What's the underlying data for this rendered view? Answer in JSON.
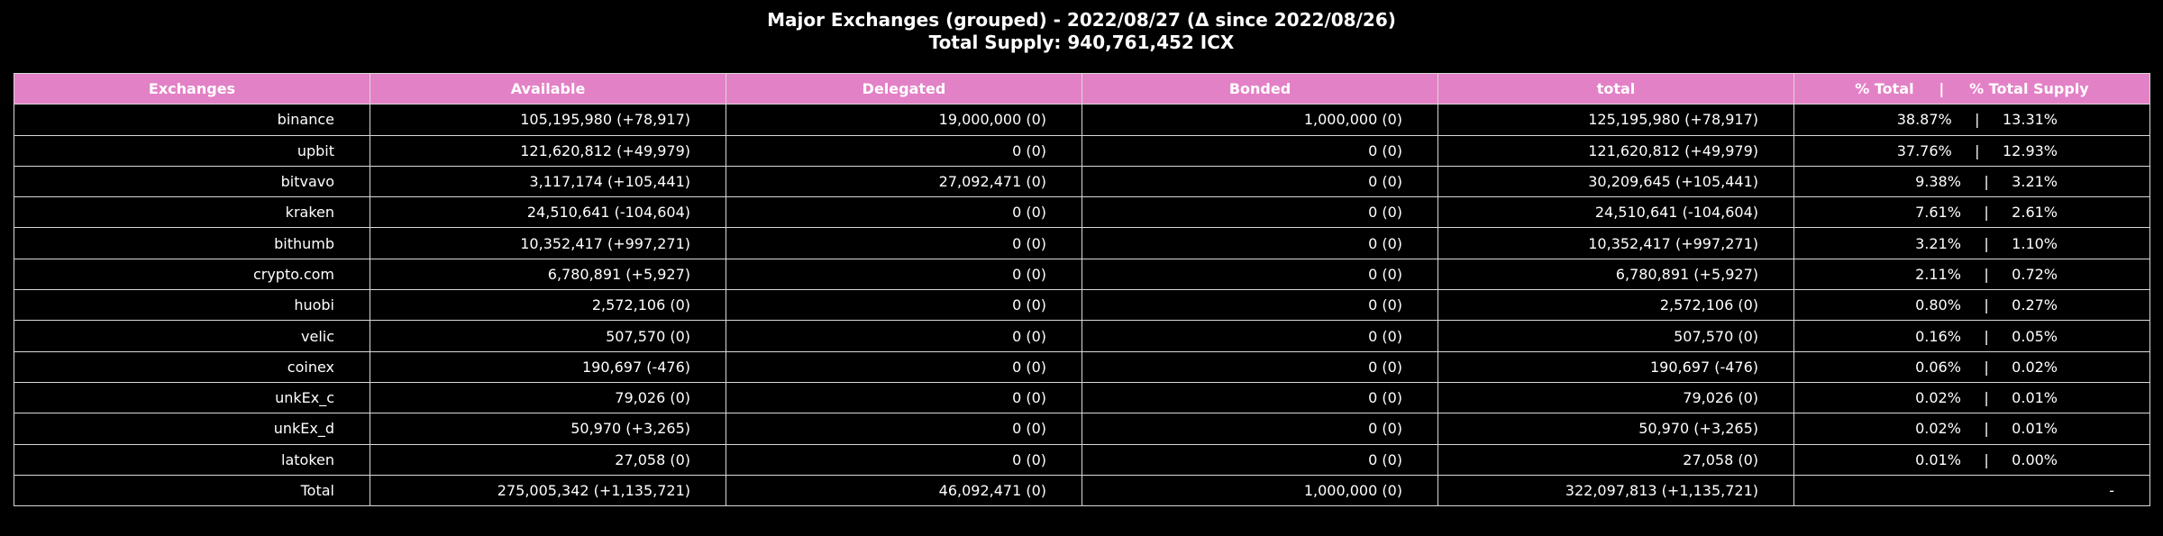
{
  "title_line1": "Major Exchanges (grouped) - 2022/08/27 (Δ since 2022/08/26)",
  "title_line2": "Total Supply: 940,761,452 ICX",
  "colors": {
    "header_bg": "#e381c6",
    "background": "#000000",
    "text": "#ffffff",
    "grid": "#d9d9d9"
  },
  "chart_data": {
    "type": "table",
    "title": "Major Exchanges (grouped) - 2022/08/27 (Δ since 2022/08/26)",
    "subtitle": "Total Supply: 940,761,452 ICX",
    "columns": [
      "Exchanges",
      "Available",
      "Delegated",
      "Bonded",
      "total",
      "% Total     |     % Total Supply"
    ],
    "rows": [
      [
        "binance",
        "105,195,980 (+78,917)",
        "19,000,000 (0)",
        "1,000,000 (0)",
        "125,195,980 (+78,917)",
        "38.87%     |     13.31%"
      ],
      [
        "upbit",
        "121,620,812 (+49,979)",
        "0 (0)",
        "0 (0)",
        "121,620,812 (+49,979)",
        "37.76%     |     12.93%"
      ],
      [
        "bitvavo",
        "3,117,174 (+105,441)",
        "27,092,471 (0)",
        "0 (0)",
        "30,209,645 (+105,441)",
        "9.38%     |     3.21%"
      ],
      [
        "kraken",
        "24,510,641 (-104,604)",
        "0 (0)",
        "0 (0)",
        "24,510,641 (-104,604)",
        "7.61%     |     2.61%"
      ],
      [
        "bithumb",
        "10,352,417 (+997,271)",
        "0 (0)",
        "0 (0)",
        "10,352,417 (+997,271)",
        "3.21%     |     1.10%"
      ],
      [
        "crypto.com",
        "6,780,891 (+5,927)",
        "0 (0)",
        "0 (0)",
        "6,780,891 (+5,927)",
        "2.11%     |     0.72%"
      ],
      [
        "huobi",
        "2,572,106 (0)",
        "0 (0)",
        "0 (0)",
        "2,572,106 (0)",
        "0.80%     |     0.27%"
      ],
      [
        "velic",
        "507,570 (0)",
        "0 (0)",
        "0 (0)",
        "507,570 (0)",
        "0.16%     |     0.05%"
      ],
      [
        "coinex",
        "190,697 (-476)",
        "0 (0)",
        "0 (0)",
        "190,697 (-476)",
        "0.06%     |     0.02%"
      ],
      [
        "unkEx_c",
        "79,026 (0)",
        "0 (0)",
        "0 (0)",
        "79,026 (0)",
        "0.02%     |     0.01%"
      ],
      [
        "unkEx_d",
        "50,970 (+3,265)",
        "0 (0)",
        "0 (0)",
        "50,970 (+3,265)",
        "0.02%     |     0.01%"
      ],
      [
        "latoken",
        "27,058 (0)",
        "0 (0)",
        "0 (0)",
        "27,058 (0)",
        "0.01%     |     0.00%"
      ],
      [
        "Total",
        "275,005,342 (+1,135,721)",
        "46,092,471 (0)",
        "1,000,000 (0)",
        "322,097,813 (+1,135,721)",
        "-"
      ]
    ]
  }
}
